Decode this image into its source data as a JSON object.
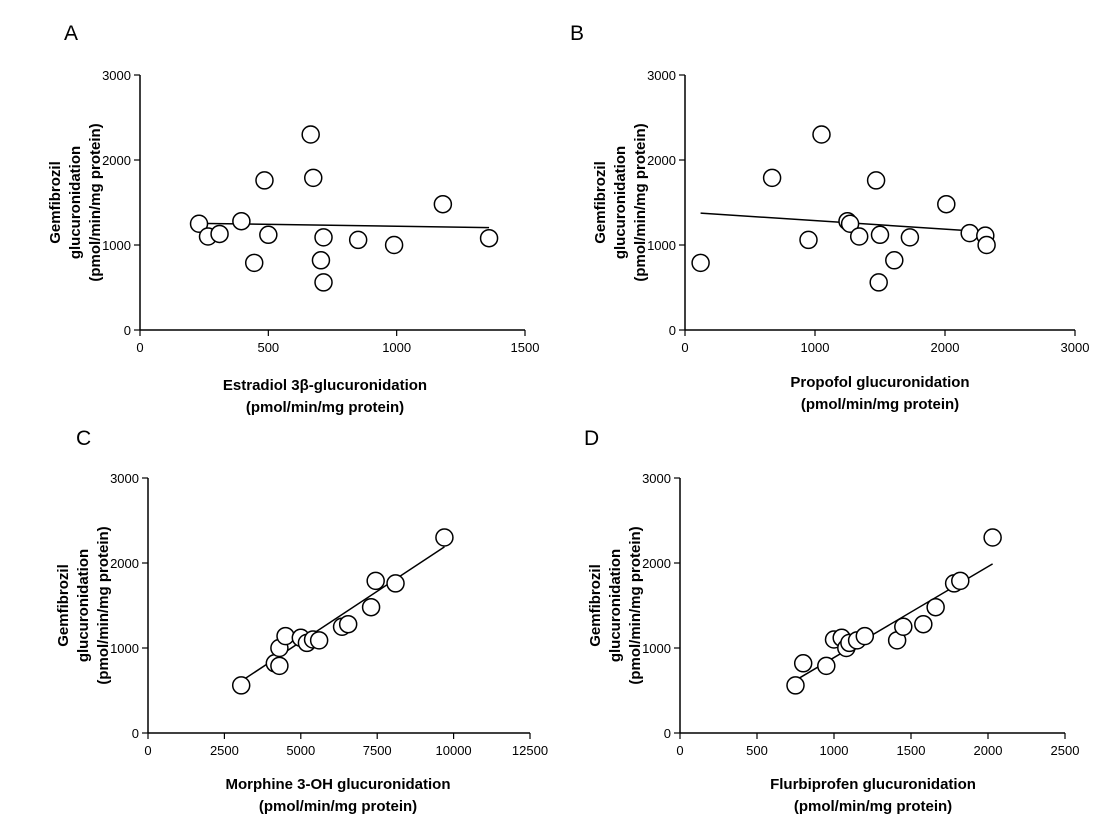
{
  "figure": {
    "panels": [
      "A",
      "B",
      "C",
      "D"
    ]
  },
  "chart_data": [
    {
      "panel_label": "A",
      "type": "scatter",
      "xlabel_lines": [
        "Estradiol 3β-glucuronidation",
        "(pmol/min/mg protein)"
      ],
      "ylabel_lines": [
        "Gemfibrozil",
        "glucuronidation",
        "(pmol/min/mg protein)"
      ],
      "xlim": [
        0,
        1500
      ],
      "ylim": [
        0,
        3000
      ],
      "xticks": [
        0,
        500,
        1000,
        1500
      ],
      "yticks": [
        0,
        1000,
        2000,
        3000
      ],
      "xtick_labels": [
        "0",
        "500",
        "1000",
        "1500"
      ],
      "ytick_labels": [
        "0",
        "1000",
        "2000",
        "3000"
      ],
      "points": [
        {
          "x": 230,
          "y": 1250
        },
        {
          "x": 265,
          "y": 1100
        },
        {
          "x": 310,
          "y": 1130
        },
        {
          "x": 395,
          "y": 1280
        },
        {
          "x": 445,
          "y": 790
        },
        {
          "x": 485,
          "y": 1760
        },
        {
          "x": 500,
          "y": 1120
        },
        {
          "x": 665,
          "y": 2300
        },
        {
          "x": 675,
          "y": 1790
        },
        {
          "x": 705,
          "y": 820
        },
        {
          "x": 715,
          "y": 1090
        },
        {
          "x": 715,
          "y": 560
        },
        {
          "x": 850,
          "y": 1060
        },
        {
          "x": 990,
          "y": 1000
        },
        {
          "x": 1180,
          "y": 1480
        },
        {
          "x": 1360,
          "y": 1080
        }
      ],
      "fit_line": {
        "x": [
          230,
          1360
        ],
        "y": [
          1255,
          1205
        ]
      }
    },
    {
      "panel_label": "B",
      "type": "scatter",
      "xlabel_lines": [
        "Propofol glucuronidation",
        "(pmol/min/mg protein)"
      ],
      "ylabel_lines": [
        "Gemfibrozil",
        "glucuronidation",
        "(pmol/min/mg protein)"
      ],
      "xlim": [
        0,
        3000
      ],
      "ylim": [
        0,
        3000
      ],
      "xticks": [
        0,
        1000,
        2000,
        3000
      ],
      "yticks": [
        0,
        1000,
        2000,
        3000
      ],
      "xtick_labels": [
        "0",
        "1000",
        "2000",
        "3000"
      ],
      "ytick_labels": [
        "0",
        "1000",
        "2000",
        "3000"
      ],
      "points": [
        {
          "x": 120,
          "y": 790
        },
        {
          "x": 670,
          "y": 1790
        },
        {
          "x": 950,
          "y": 1060
        },
        {
          "x": 1050,
          "y": 2300
        },
        {
          "x": 1250,
          "y": 1280
        },
        {
          "x": 1270,
          "y": 1250
        },
        {
          "x": 1340,
          "y": 1100
        },
        {
          "x": 1470,
          "y": 1760
        },
        {
          "x": 1500,
          "y": 1120
        },
        {
          "x": 1490,
          "y": 560
        },
        {
          "x": 1610,
          "y": 820
        },
        {
          "x": 1730,
          "y": 1090
        },
        {
          "x": 2010,
          "y": 1480
        },
        {
          "x": 2190,
          "y": 1140
        },
        {
          "x": 2310,
          "y": 1110
        },
        {
          "x": 2320,
          "y": 1000
        }
      ],
      "fit_line": {
        "x": [
          120,
          2320
        ],
        "y": [
          1375,
          1155
        ]
      }
    },
    {
      "panel_label": "C",
      "type": "scatter",
      "xlabel_lines": [
        "Morphine 3-OH glucuronidation",
        "(pmol/min/mg protein)"
      ],
      "ylabel_lines": [
        "Gemfibrozil",
        "glucuronidation",
        "(pmol/min/mg protein)"
      ],
      "xlim": [
        0,
        12500
      ],
      "ylim": [
        0,
        3000
      ],
      "xticks": [
        0,
        2500,
        5000,
        7500,
        10000,
        12500
      ],
      "yticks": [
        0,
        1000,
        2000,
        3000
      ],
      "xtick_labels": [
        "0",
        "2500",
        "5000",
        "7500",
        "10000",
        "12500"
      ],
      "ytick_labels": [
        "0",
        "1000",
        "2000",
        "3000"
      ],
      "points": [
        {
          "x": 3050,
          "y": 560
        },
        {
          "x": 4150,
          "y": 820
        },
        {
          "x": 4300,
          "y": 790
        },
        {
          "x": 4300,
          "y": 1000
        },
        {
          "x": 4500,
          "y": 1140
        },
        {
          "x": 5000,
          "y": 1120
        },
        {
          "x": 5200,
          "y": 1060
        },
        {
          "x": 5400,
          "y": 1100
        },
        {
          "x": 5600,
          "y": 1090
        },
        {
          "x": 6350,
          "y": 1250
        },
        {
          "x": 6550,
          "y": 1280
        },
        {
          "x": 7300,
          "y": 1480
        },
        {
          "x": 7450,
          "y": 1790
        },
        {
          "x": 8100,
          "y": 1760
        },
        {
          "x": 9700,
          "y": 2300
        }
      ],
      "fit_line": {
        "x": [
          3050,
          9700
        ],
        "y": [
          610,
          2190
        ]
      }
    },
    {
      "panel_label": "D",
      "type": "scatter",
      "xlabel_lines": [
        "Flurbiprofen glucuronidation",
        "(pmol/min/mg protein)"
      ],
      "ylabel_lines": [
        "Gemfibrozil",
        "glucuronidation",
        "(pmol/min/mg protein)"
      ],
      "xlim": [
        0,
        2500
      ],
      "ylim": [
        0,
        3000
      ],
      "xticks": [
        0,
        500,
        1000,
        1500,
        2000,
        2500
      ],
      "yticks": [
        0,
        1000,
        2000,
        3000
      ],
      "xtick_labels": [
        "0",
        "500",
        "1000",
        "1500",
        "2000",
        "2500"
      ],
      "ytick_labels": [
        "0",
        "1000",
        "2000",
        "3000"
      ],
      "points": [
        {
          "x": 750,
          "y": 560
        },
        {
          "x": 800,
          "y": 820
        },
        {
          "x": 950,
          "y": 790
        },
        {
          "x": 1000,
          "y": 1100
        },
        {
          "x": 1050,
          "y": 1120
        },
        {
          "x": 1080,
          "y": 1000
        },
        {
          "x": 1100,
          "y": 1060
        },
        {
          "x": 1150,
          "y": 1090
        },
        {
          "x": 1200,
          "y": 1140
        },
        {
          "x": 1410,
          "y": 1090
        },
        {
          "x": 1450,
          "y": 1250
        },
        {
          "x": 1580,
          "y": 1280
        },
        {
          "x": 1660,
          "y": 1480
        },
        {
          "x": 1780,
          "y": 1760
        },
        {
          "x": 1820,
          "y": 1790
        },
        {
          "x": 2030,
          "y": 2300
        }
      ],
      "fit_line": {
        "x": [
          750,
          2030
        ],
        "y": [
          620,
          1990
        ]
      }
    }
  ]
}
